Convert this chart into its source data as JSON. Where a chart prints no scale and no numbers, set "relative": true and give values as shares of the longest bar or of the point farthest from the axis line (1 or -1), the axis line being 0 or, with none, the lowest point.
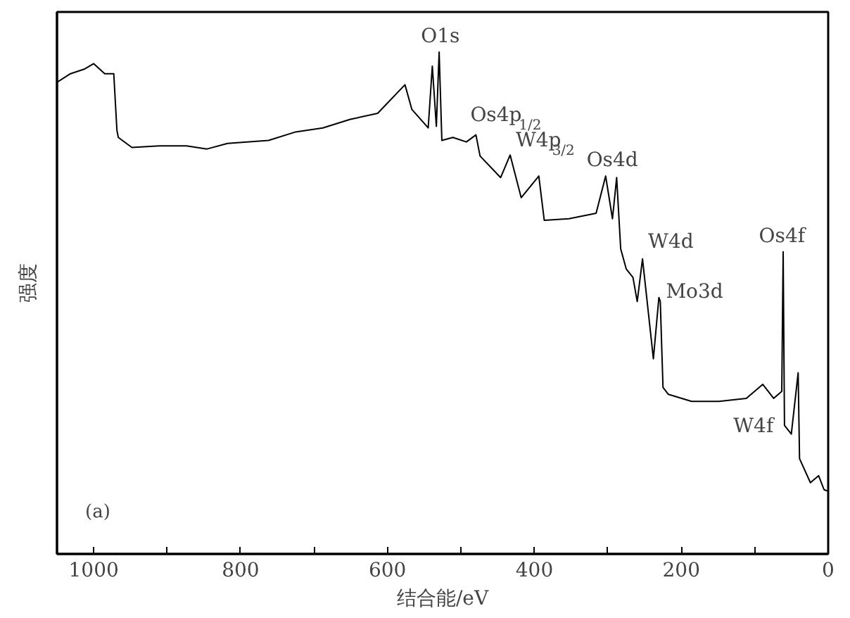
{
  "chart_data": {
    "type": "line",
    "relative": true,
    "xlabel": "结合能/eV",
    "ylabel": "强度",
    "xlim": [
      1050,
      0
    ],
    "xticks": [
      1000,
      {
        "value": 900,
        "label": null
      },
      800,
      {
        "value": 700,
        "label": null
      },
      600,
      {
        "value": 500,
        "label": null
      },
      400,
      {
        "value": 300,
        "label": null
      },
      200,
      {
        "value": 100,
        "label": null
      },
      0
    ],
    "x": [
      1050,
      1031.6,
      1013,
      1000,
      985,
      972.7,
      968.4,
      966.5,
      948,
      910.8,
      873.6,
      845.7,
      817.8,
      762,
      725,
      688,
      650.6,
      613.4,
      576.2,
      566.9,
      544.6,
      539,
      533.5,
      529.7,
      526,
      511,
      492.6,
      479.6,
      474,
      446,
      433,
      418,
      394,
      386.6,
      353,
      316,
      303,
      293.7,
      288,
      282.5,
      275,
      265.8,
      260,
      252.8,
      238,
      230.5,
      228.6,
      224.9,
      217.5,
      186,
      148.7,
      111.5,
      89,
      74.3,
      63.2,
      61.3,
      59.5,
      50.2,
      40.9,
      39,
      24.2,
      13,
      5.6,
      0
    ],
    "series": [
      {
        "color": "#000000",
        "values": [
          0.94,
          0.957,
          0.966,
          0.977,
          0.957,
          0.957,
          0.844,
          0.83,
          0.81,
          0.813,
          0.813,
          0.807,
          0.818,
          0.824,
          0.841,
          0.849,
          0.866,
          0.878,
          0.935,
          0.886,
          0.849,
          0.972,
          0.852,
          1.0,
          0.824,
          0.83,
          0.821,
          0.835,
          0.793,
          0.75,
          0.795,
          0.71,
          0.753,
          0.665,
          0.668,
          0.679,
          0.753,
          0.668,
          0.75,
          0.608,
          0.568,
          0.551,
          0.503,
          0.588,
          0.389,
          0.511,
          0.503,
          0.332,
          0.318,
          0.304,
          0.304,
          0.31,
          0.338,
          0.31,
          0.324,
          0.602,
          0.256,
          0.239,
          0.361,
          0.19,
          0.142,
          0.156,
          0.128,
          0.125
        ]
      }
    ],
    "annotations": [
      {
        "text": "O1s",
        "x": 529.7,
        "y": 1.0
      },
      {
        "text": "Os4p$_{1/2}$",
        "x": 479.6,
        "y": 0.835
      },
      {
        "text": "W4p$_{3/2}$",
        "x": 433,
        "y": 0.795
      },
      {
        "text": "Os4d",
        "x": 296,
        "y": 0.753
      },
      {
        "text": "W4d",
        "x": 252.8,
        "y": 0.588
      },
      {
        "text": "Mo3d",
        "x": 230.5,
        "y": 0.511
      },
      {
        "text": "Os4f",
        "x": 61.3,
        "y": 0.602
      },
      {
        "text": "W4f",
        "x": 40.9,
        "y": 0.361
      },
      "(a)"
    ]
  }
}
